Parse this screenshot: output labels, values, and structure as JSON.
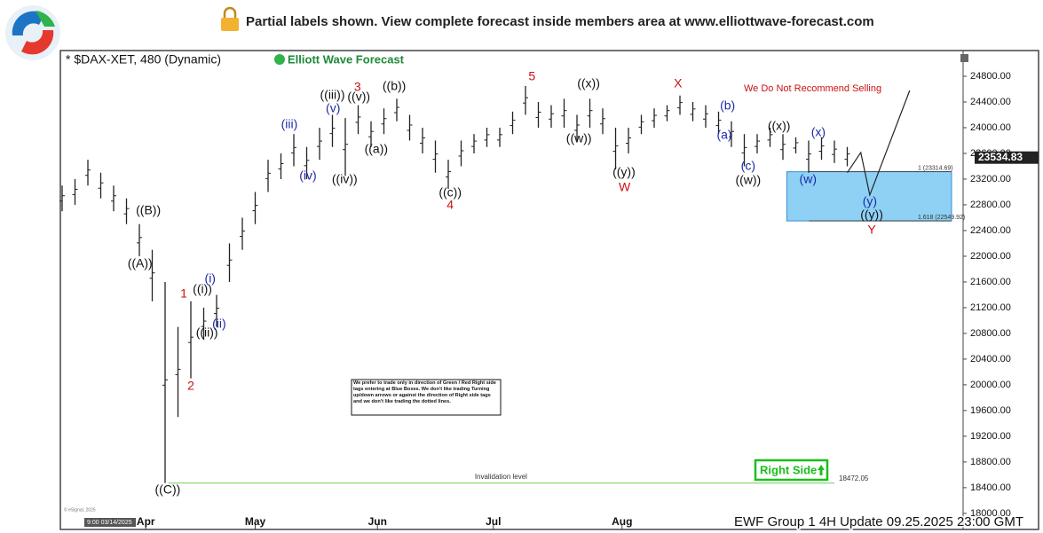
{
  "header": {
    "text": "Partial labels shown. View complete forecast inside members area at www.elliottwave-forecast.com"
  },
  "chart_data": {
    "type": "range-bar",
    "title": "* $DAX-XET, 480 (Dynamic)",
    "brand": "Elliott Wave Forecast",
    "warning": "We Do Not Recommend Selling",
    "side_tag": "Right Side",
    "note": "We prefer to trade only in direction of Green / Red Right side tags entering at Blue Boxes. We don't like trading Turning up/down arrows or against the direction of Right side tags and we don't like trading the dotted lines.",
    "footer": "EWF Group 1 4H  Update 09.25.2025 23:00 GMT",
    "start_stamp": "9:00 03/14/2025",
    "copyright": "© eSignal, 2025",
    "color": "#222222",
    "xlim": [
      0,
      140
    ],
    "ylim": [
      17750,
      25200
    ],
    "xticks": [
      {
        "value": 13,
        "label": "Apr"
      },
      {
        "value": 30,
        "label": "May"
      },
      {
        "value": 49,
        "label": "Jun"
      },
      {
        "value": 67,
        "label": "Jul"
      },
      {
        "value": 87,
        "label": "Aug"
      }
    ],
    "yticks": [
      {
        "value": 18000,
        "label": "18000.00"
      },
      {
        "value": 18400,
        "label": "18400.00"
      },
      {
        "value": 18800,
        "label": "18800.00"
      },
      {
        "value": 19200,
        "label": "19200.00"
      },
      {
        "value": 19600,
        "label": "19600.00"
      },
      {
        "value": 20000,
        "label": "20000.00"
      },
      {
        "value": 20400,
        "label": "20400.00"
      },
      {
        "value": 20800,
        "label": "20800.00"
      },
      {
        "value": 21200,
        "label": "21200.00"
      },
      {
        "value": 21600,
        "label": "21600.00"
      },
      {
        "value": 22000,
        "label": "22000.00"
      },
      {
        "value": 22400,
        "label": "22400.00"
      },
      {
        "value": 22800,
        "label": "22800.00"
      },
      {
        "value": 23200,
        "label": "23200.00"
      },
      {
        "value": 23600,
        "label": "23600.00"
      },
      {
        "value": 24000,
        "label": "24000.00"
      },
      {
        "value": 24400,
        "label": "24400.00"
      },
      {
        "value": 24800,
        "label": "24800.00"
      }
    ],
    "bars": {
      "x": [
        0,
        2,
        4,
        6,
        8,
        10,
        12,
        14,
        16,
        18,
        20,
        22,
        24,
        26,
        28,
        30,
        32,
        34,
        36,
        38,
        40,
        42,
        44,
        46,
        48,
        50,
        52,
        54,
        56,
        58,
        60,
        62,
        64,
        66,
        68,
        70,
        72,
        74,
        76,
        78,
        80,
        82,
        84,
        86,
        88,
        90,
        92,
        94,
        96,
        98,
        100,
        102,
        104,
        106,
        108,
        110,
        112,
        114,
        116,
        118,
        120,
        122
      ],
      "low": [
        22700,
        22800,
        23100,
        22900,
        22700,
        22500,
        22000,
        21300,
        18472,
        19500,
        20100,
        20700,
        20900,
        21600,
        22100,
        22500,
        23000,
        23200,
        23400,
        23200,
        23500,
        23700,
        23250,
        23900,
        23700,
        23900,
        24100,
        23800,
        23600,
        23300,
        23050,
        23400,
        23600,
        23700,
        23700,
        23900,
        24200,
        24000,
        24000,
        24000,
        23800,
        24000,
        23900,
        23350,
        23600,
        23900,
        24000,
        24100,
        24200,
        24100,
        24000,
        23900,
        23700,
        23400,
        23600,
        23700,
        23500,
        23600,
        23300,
        23500,
        23450,
        23400
      ],
      "high": [
        23100,
        23200,
        23500,
        23300,
        23100,
        22900,
        22500,
        22100,
        21600,
        20900,
        21300,
        21200,
        21400,
        22200,
        22600,
        23000,
        23500,
        23600,
        23900,
        23700,
        24000,
        24200,
        24150,
        24350,
        24100,
        24300,
        24450,
        24200,
        24000,
        23800,
        23500,
        23800,
        23900,
        24000,
        24000,
        24250,
        24650,
        24400,
        24350,
        24450,
        24200,
        24450,
        24300,
        24000,
        24000,
        24200,
        24300,
        24350,
        24500,
        24400,
        24350,
        24250,
        24100,
        23900,
        23900,
        24000,
        23900,
        23850,
        23800,
        23850,
        23800,
        23700
      ]
    },
    "last_price": {
      "value": 23534.83,
      "label": "23534.83"
    },
    "labels": [
      {
        "text": "((B))",
        "x": 13.4,
        "y": 22704,
        "color": "#111111"
      },
      {
        "text": "((A))",
        "x": 12.1,
        "y": 21877,
        "color": "#111111"
      },
      {
        "text": "((C))",
        "x": 16.4,
        "y": 18360,
        "color": "#111111"
      },
      {
        "text": "1",
        "x": 18.9,
        "y": 21408,
        "color": "#cc1111"
      },
      {
        "text": "2",
        "x": 20,
        "y": 19974,
        "color": "#cc1111"
      },
      {
        "text": "((i))",
        "x": 21.8,
        "y": 21477,
        "color": "#111111"
      },
      {
        "text": "(i)",
        "x": 23,
        "y": 21642,
        "color": "#1a2aa8"
      },
      {
        "text": "((ii))",
        "x": 22.5,
        "y": 20801,
        "color": "#111111"
      },
      {
        "text": "(ii)",
        "x": 24.4,
        "y": 20939,
        "color": "#1a2aa8"
      },
      {
        "text": "(iii)",
        "x": 35.3,
        "y": 24042,
        "color": "#1a2aa8"
      },
      {
        "text": "(iv)",
        "x": 38.2,
        "y": 23242,
        "color": "#1a2aa8"
      },
      {
        "text": "(v)",
        "x": 42.1,
        "y": 24290,
        "color": "#1a2aa8"
      },
      {
        "text": "((iii))",
        "x": 42,
        "y": 24497,
        "color": "#111111"
      },
      {
        "text": "((iv))",
        "x": 43.9,
        "y": 23187,
        "color": "#111111"
      },
      {
        "text": "3",
        "x": 45.9,
        "y": 24621,
        "color": "#cc1111"
      },
      {
        "text": "((v))",
        "x": 46.1,
        "y": 24469,
        "color": "#111111"
      },
      {
        "text": "((a))",
        "x": 48.8,
        "y": 23655,
        "color": "#111111"
      },
      {
        "text": "((b))",
        "x": 51.6,
        "y": 24635,
        "color": "#111111"
      },
      {
        "text": "((c))",
        "x": 60.3,
        "y": 22980,
        "color": "#111111"
      },
      {
        "text": "4",
        "x": 60.3,
        "y": 22787,
        "color": "#cc1111"
      },
      {
        "text": "5",
        "x": 73,
        "y": 24786,
        "color": "#cc1111"
      },
      {
        "text": "((x))",
        "x": 81.8,
        "y": 24676,
        "color": "#111111"
      },
      {
        "text": "((w))",
        "x": 80.3,
        "y": 23821,
        "color": "#111111"
      },
      {
        "text": "((y))",
        "x": 87.3,
        "y": 23297,
        "color": "#111111"
      },
      {
        "text": "W",
        "x": 87.4,
        "y": 23062,
        "color": "#cc1111"
      },
      {
        "text": "X",
        "x": 95.7,
        "y": 24676,
        "color": "#cc1111"
      },
      {
        "text": "(b)",
        "x": 103.4,
        "y": 24331,
        "color": "#1a2aa8"
      },
      {
        "text": "(a)",
        "x": 102.9,
        "y": 23876,
        "color": "#1a2aa8"
      },
      {
        "text": "(c)",
        "x": 106.6,
        "y": 23393,
        "color": "#1a2aa8"
      },
      {
        "text": "((w))",
        "x": 106.6,
        "y": 23173,
        "color": "#111111"
      },
      {
        "text": "((x))",
        "x": 111.4,
        "y": 24014,
        "color": "#111111"
      },
      {
        "text": "(x)",
        "x": 117.5,
        "y": 23917,
        "color": "#1a2aa8"
      },
      {
        "text": "(w)",
        "x": 115.9,
        "y": 23187,
        "color": "#1a2aa8"
      },
      {
        "text": "(y)",
        "x": 125.5,
        "y": 22842,
        "color": "#1a2aa8"
      },
      {
        "text": "((y))",
        "x": 125.8,
        "y": 22635,
        "color": "#111111"
      },
      {
        "text": "Y",
        "x": 125.8,
        "y": 22400,
        "color": "#cc1111"
      }
    ],
    "forecast": {
      "x": [
        122,
        124.1,
        125.5,
        131.7
      ],
      "y": [
        23300,
        23614,
        22952,
        24579
      ]
    },
    "box": {
      "x": [
        112.6,
        138.2
      ],
      "levels": [
        {
          "value": 23314.69,
          "label": "1 (23314.69)"
        },
        {
          "value": 22549.92,
          "label": "1.618 (22549.92)"
        }
      ],
      "color": "#8fd0f5"
    },
    "invalidation": {
      "value": 18472.05,
      "label": "18472.05",
      "text": "Invalidation level",
      "x": [
        16.5,
        120
      ],
      "color": "#7bd86a"
    }
  }
}
